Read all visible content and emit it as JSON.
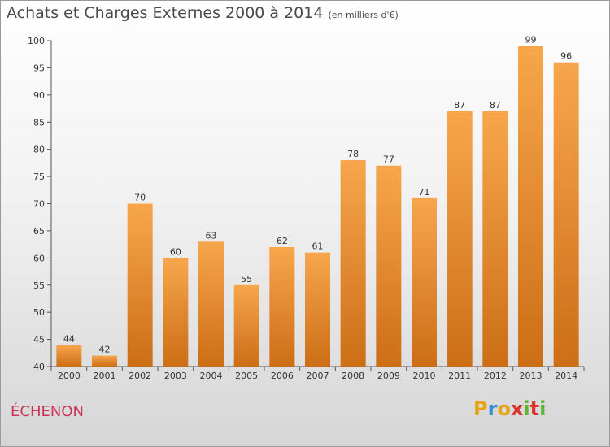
{
  "title": {
    "main": "Achats et Charges Externes 2000 à 2014",
    "unit": "(en milliers d'€)"
  },
  "commune": "ÉCHENON",
  "logo": {
    "letters": [
      "P",
      "r",
      "o",
      "x",
      "i",
      "t",
      "i"
    ],
    "colors": [
      "#e8a317",
      "#3d8fd4",
      "#e8a317",
      "#d9342b",
      "#5cb531",
      "#d9342b",
      "#5cb531"
    ]
  },
  "colors": {
    "bar_top": "#f7a64c",
    "bar_bottom": "#cc6e16",
    "commune_text": "#c8365a"
  },
  "chart_data": {
    "type": "bar",
    "title": "Achats et Charges Externes 2000 à 2014",
    "subtitle": "(en milliers d'€)",
    "categories": [
      "2000",
      "2001",
      "2002",
      "2003",
      "2004",
      "2005",
      "2006",
      "2007",
      "2008",
      "2009",
      "2010",
      "2011",
      "2012",
      "2013",
      "2014"
    ],
    "values": [
      44,
      42,
      70,
      60,
      63,
      55,
      62,
      61,
      78,
      77,
      71,
      87,
      87,
      99,
      96
    ],
    "ylim": [
      40,
      100
    ],
    "yticks": [
      40,
      45,
      50,
      55,
      60,
      65,
      70,
      75,
      80,
      85,
      90,
      95,
      100
    ],
    "grid": false,
    "xlabel": "",
    "ylabel": ""
  }
}
